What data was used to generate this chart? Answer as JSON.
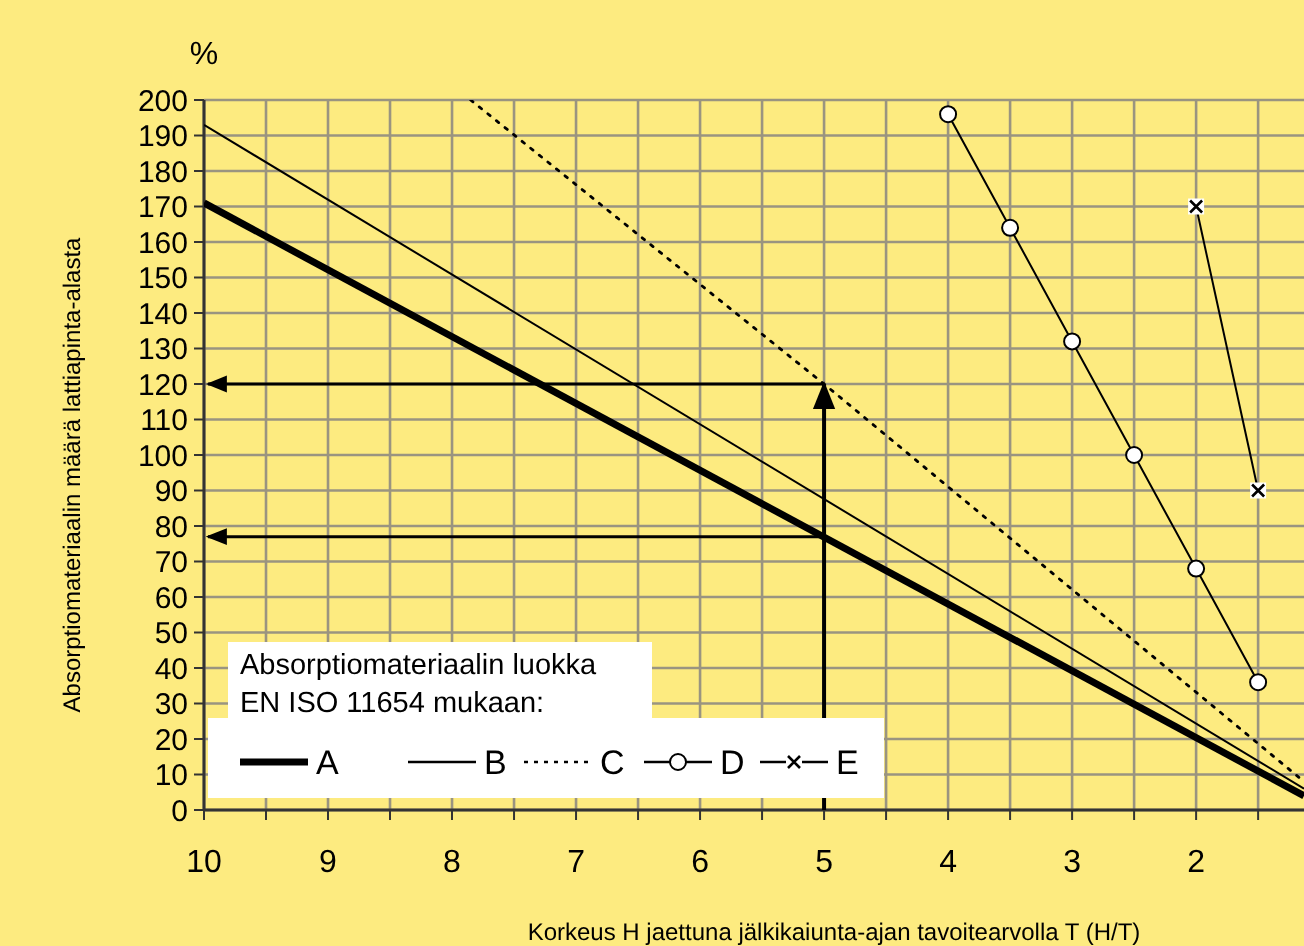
{
  "chart_data": {
    "type": "line",
    "ylabel": "Absorptiomateriaalin määrä lattiapinta-alasta",
    "xlabel": "Korkeus H jaettuna jälkikaiunta-ajan tavoitearvolla T (H/T)",
    "legend_title": "Absorptiomateriaalin luokka\nEN ISO 11654 mukaan:",
    "annotations": [
      "%"
    ],
    "xlim": [
      10,
      1.13
    ],
    "ylim": [
      0,
      200
    ],
    "xticks": [
      10,
      {
        "value": 9.5,
        "label": null
      },
      9,
      {
        "value": 8.5,
        "label": null
      },
      8,
      {
        "value": 7.5,
        "label": null
      },
      7,
      {
        "value": 6.5,
        "label": null
      },
      6,
      {
        "value": 5.5,
        "label": null
      },
      5,
      {
        "value": 4.5,
        "label": null
      },
      4,
      {
        "value": 3.5,
        "label": null
      },
      3,
      {
        "value": 2.5,
        "label": null
      },
      2,
      {
        "value": 1.5,
        "label": null
      }
    ],
    "yticks": [
      0,
      10,
      20,
      30,
      40,
      50,
      60,
      70,
      80,
      90,
      100,
      110,
      120,
      130,
      140,
      150,
      160,
      170,
      180,
      190,
      200
    ],
    "grid": true,
    "legend": "bottom left",
    "series": [
      {
        "name": "A",
        "color": "#000000",
        "x": [
          10,
          1.13
        ],
        "values": [
          171,
          4
        ],
        "marker": "none",
        "line_style": "solid"
      },
      {
        "name": "B",
        "color": "#000000",
        "x": [
          10,
          1.13
        ],
        "values": [
          193,
          6
        ],
        "marker": "none",
        "line_style": "solid"
      },
      {
        "name": "C",
        "color": "#000000",
        "x": [
          7.85,
          5,
          1.13
        ],
        "values": [
          200,
          120,
          8
        ],
        "marker": "none",
        "line_style": "dotted"
      },
      {
        "name": "D",
        "color": "#000000",
        "x": [
          4,
          3.5,
          3,
          2.5,
          2,
          1.5
        ],
        "values": [
          196,
          164,
          132,
          100,
          68,
          36
        ],
        "marker": "circle",
        "line_style": "solid"
      },
      {
        "name": "E",
        "color": "#000000",
        "x": [
          2,
          1.5
        ],
        "values": [
          170,
          90
        ],
        "marker": "cross",
        "line_style": "solid"
      }
    ],
    "ref_lines": [
      {
        "axis": "x",
        "value": 5
      },
      {
        "axis": "y",
        "value": 120
      },
      {
        "axis": "y",
        "value": 77
      }
    ]
  }
}
